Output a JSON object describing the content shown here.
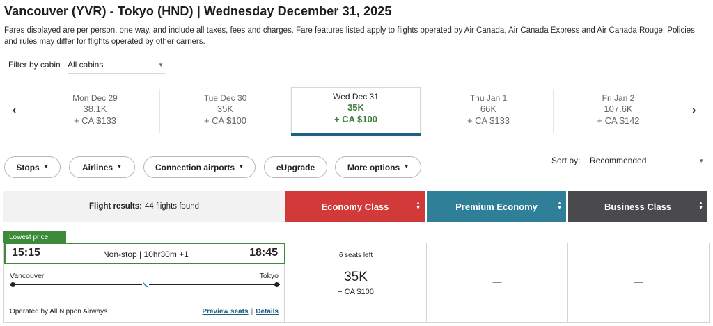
{
  "header": {
    "title": "Vancouver (YVR) - Tokyo (HND)  |  Wednesday December 31, 2025",
    "note": "Fares displayed are per person, one way, and include all taxes, fees and charges. Fare features listed apply to flights operated by Air Canada, Air Canada Express and Air Canada Rouge. Policies and rules may differ for flights operated by other carriers."
  },
  "cabin_filter": {
    "label": "Filter by cabin",
    "value": "All cabins"
  },
  "date_strip": {
    "prev_icon": "chevron-left-icon",
    "next_icon": "chevron-right-icon",
    "prev_glyph": "‹",
    "next_glyph": "›",
    "dates": [
      {
        "day": "Mon Dec 29",
        "points": "38.1K",
        "cash": "+ CA $133",
        "selected": false
      },
      {
        "day": "Tue Dec 30",
        "points": "35K",
        "cash": "+ CA $100",
        "selected": false
      },
      {
        "day": "Wed Dec 31",
        "points": "35K",
        "cash": "+ CA $100",
        "selected": true
      },
      {
        "day": "Thu Jan 1",
        "points": "66K",
        "cash": "+ CA $133",
        "selected": false
      },
      {
        "day": "Fri Jan 2",
        "points": "107.6K",
        "cash": "+ CA $142",
        "selected": false
      }
    ]
  },
  "filters": {
    "stops": "Stops",
    "airlines": "Airlines",
    "connection_airports": "Connection airports",
    "eupgrade": "eUpgrade",
    "more_options": "More options"
  },
  "sort": {
    "label": "Sort by:",
    "value": "Recommended"
  },
  "results": {
    "label": "Flight results:",
    "count": "44 flights found"
  },
  "cabins": [
    {
      "name": "Economy Class",
      "color": "#d13a38"
    },
    {
      "name": "Premium Economy",
      "color": "#2f7f99"
    },
    {
      "name": "Business Class",
      "color": "#4a4a4c"
    }
  ],
  "flight": {
    "badge": "Lowest price",
    "departure_time": "15:15",
    "arrival_time": "18:45",
    "duration": "Non-stop | 10hr30m +1",
    "origin": "Vancouver",
    "destination": "Tokyo",
    "operated_by": "Operated by All Nippon Airways",
    "preview_seats": "Preview seats",
    "separator": "|",
    "details": "Details",
    "economy": {
      "seats_left": "6 seats left",
      "points": "35K",
      "cash": "+ CA $100"
    },
    "premium": {
      "value": "—"
    },
    "business": {
      "value": "—"
    }
  },
  "colors": {
    "accent_green": "#3d8b3a",
    "selected_bar": "#1f5f82"
  }
}
